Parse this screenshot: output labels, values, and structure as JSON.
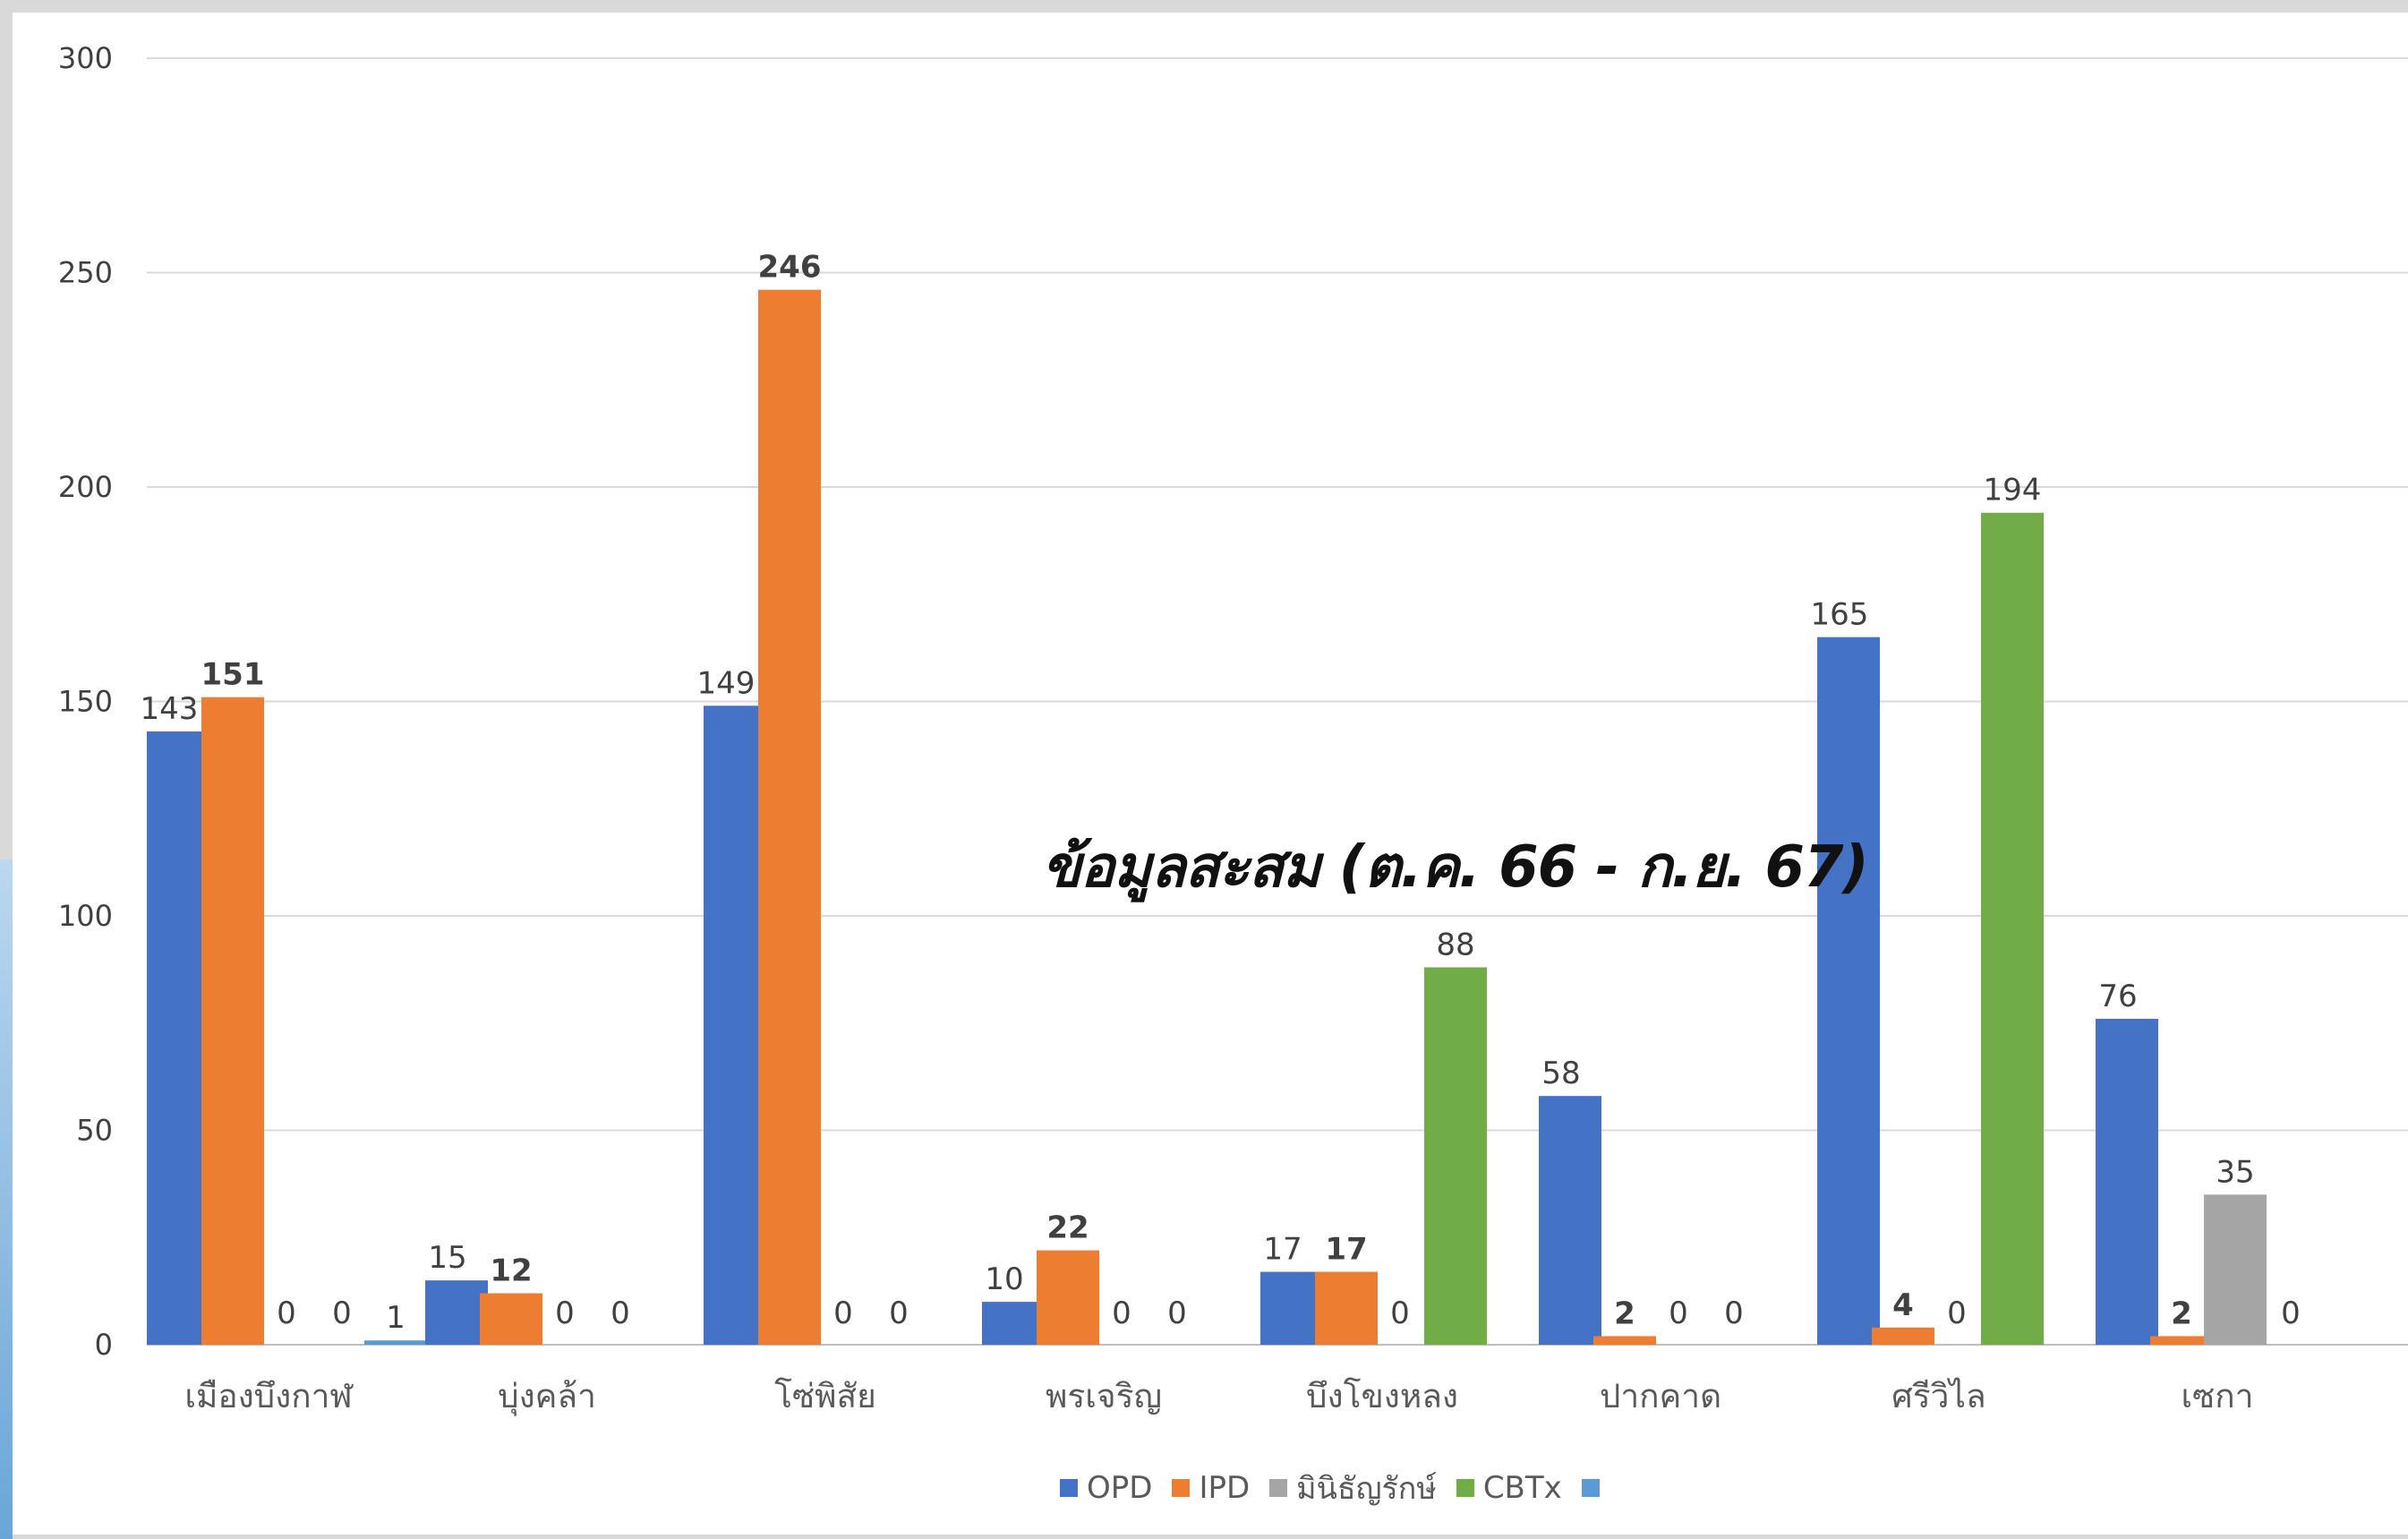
{
  "chart_data": {
    "type": "bar",
    "title": "ข้อมูลสะสม (ต.ค. 66 - ก.ย. 67)",
    "categories": [
      "เมืองบึงกาฬ",
      "บุ่งคล้า",
      "โซ่พิสัย",
      "พรเจริญ",
      "บึงโขงหลง",
      "ปากคาด",
      "ศรีวิไล",
      "เซกา"
    ],
    "yticks": [
      "0",
      "50",
      "100",
      "150",
      "200",
      "250",
      "300"
    ],
    "ylim": [
      0,
      300
    ],
    "grid": true,
    "legend_position": "bottom",
    "series": [
      {
        "name": "OPD",
        "color": "#4472c4",
        "values": [
          143,
          15,
          149,
          10,
          17,
          58,
          165,
          76
        ],
        "labels": [
          "143",
          "15",
          "149",
          "10",
          "17",
          "58",
          "165",
          "76"
        ],
        "label_bold": false
      },
      {
        "name": "IPD",
        "color": "#ed7d31",
        "values": [
          151,
          12,
          246,
          22,
          17,
          2,
          4,
          2
        ],
        "labels": [
          "151",
          "12",
          "246",
          "22",
          "17",
          "2",
          "4",
          "2"
        ],
        "label_bold": true
      },
      {
        "name": "มินิธัญรักษ์",
        "color": "#a5a5a5",
        "values": [
          0,
          0,
          0,
          0,
          0,
          0,
          0,
          35
        ],
        "labels": [
          "0",
          "0",
          "0",
          "0",
          "0",
          "0",
          "0",
          "35"
        ],
        "label_bold": false
      },
      {
        "name": "CBTx",
        "color": "#70ad47",
        "values": [
          0,
          0,
          0,
          0,
          88,
          0,
          194,
          0
        ],
        "labels": [
          "0",
          "0",
          "0",
          "0",
          "88",
          "0",
          "194",
          "0"
        ],
        "label_bold": false
      },
      {
        "name": "",
        "color": "#5b9bd5",
        "values": [
          1,
          0,
          0,
          0,
          0,
          0,
          0,
          0
        ],
        "labels": [
          "1",
          "",
          "",
          "",
          "",
          "",
          "",
          ""
        ],
        "label_bold": false
      }
    ]
  }
}
